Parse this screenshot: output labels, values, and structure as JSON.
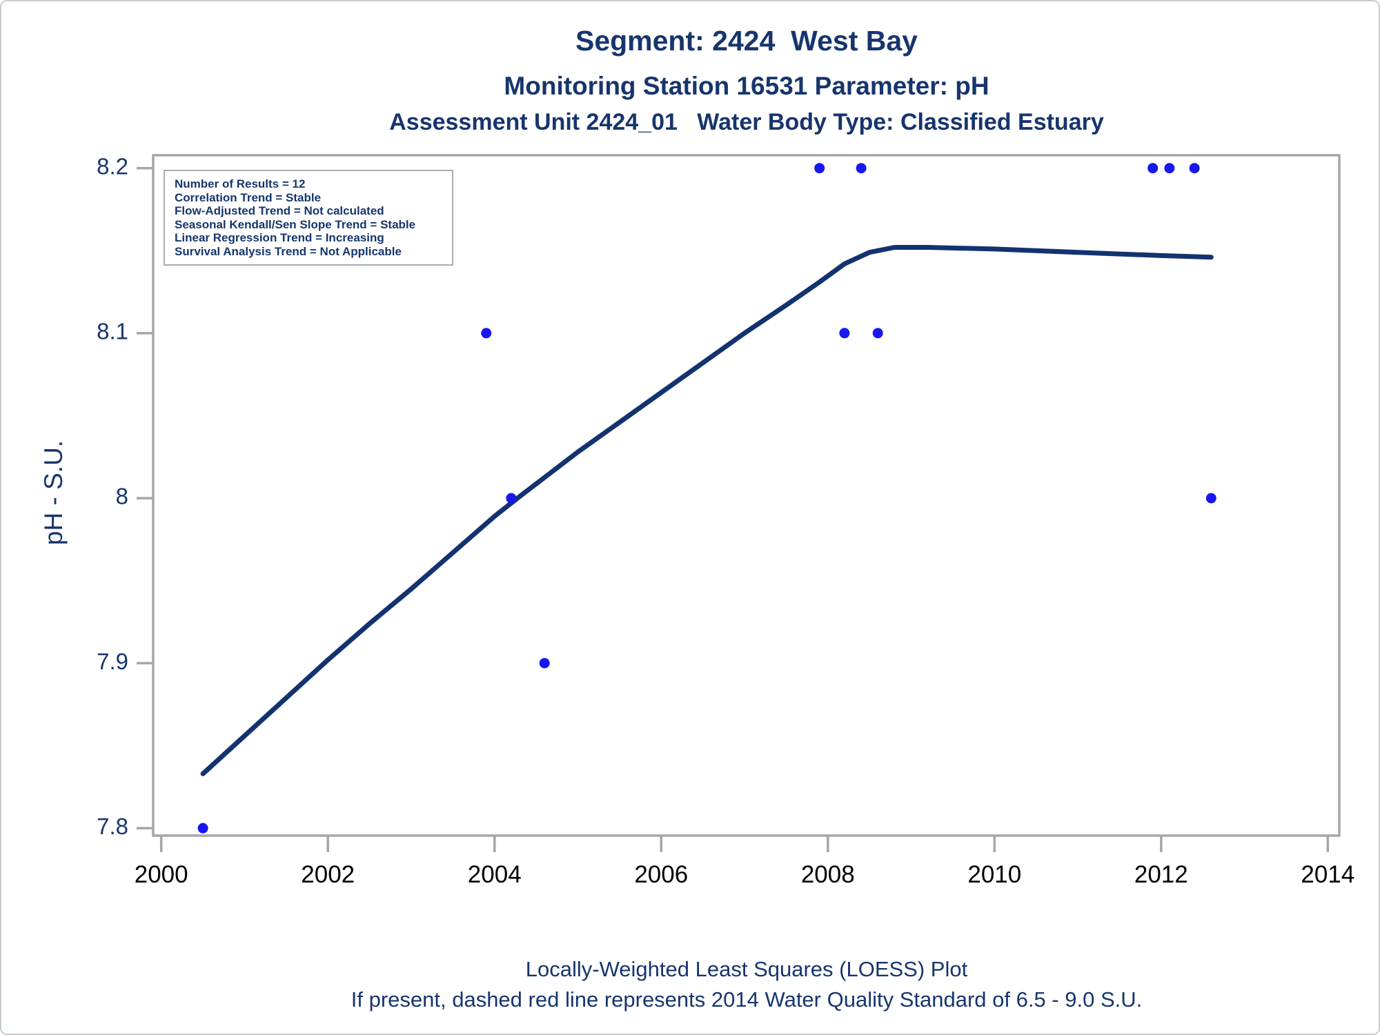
{
  "titles": {
    "line1": "Segment: 2424  West Bay",
    "line2": "Monitoring Station 16531 Parameter: pH",
    "line3": "Assessment Unit 2424_01   Water Body Type: Classified Estuary"
  },
  "stats_box": {
    "lines": [
      "Number of Results = 12",
      "Correlation Trend = Stable",
      "Flow-Adjusted Trend = Not calculated",
      "Seasonal Kendall/Sen Slope Trend = Stable",
      "Linear Regression Trend = Increasing",
      "Survival Analysis Trend = Not Applicable"
    ]
  },
  "footnotes": {
    "line1": "Locally-Weighted Least Squares (LOESS) Plot",
    "line2": "If present, dashed red line represents 2014 Water Quality Standard of 6.5 - 9.0 S.U."
  },
  "colors": {
    "text_navy": "#17356D",
    "loess_line": "#133270",
    "point_blue": "#1717F0",
    "axis_gray": "#A4A7AA",
    "x_tick_label": "#000000"
  },
  "chart_data": {
    "type": "scatter",
    "title": "Segment: 2424  West Bay",
    "subtitle1": "Monitoring Station 16531 Parameter: pH",
    "subtitle2": "Assessment Unit 2424_01   Water Body Type: Classified Estuary",
    "xlabel": "",
    "ylabel": "pH - S.U.",
    "xlim": [
      1999.9,
      2014.15
    ],
    "ylim": [
      7.795,
      8.208
    ],
    "x_ticks": [
      2000,
      2002,
      2004,
      2006,
      2008,
      2010,
      2012,
      2014
    ],
    "y_ticks": [
      {
        "value": 7.8,
        "label": "7.8"
      },
      {
        "value": 7.9,
        "label": "7.9"
      },
      {
        "value": 8.0,
        "label": "8"
      },
      {
        "value": 8.1,
        "label": "8.1"
      },
      {
        "value": 8.2,
        "label": "8.2"
      }
    ],
    "grid": false,
    "legend_position": "none",
    "series": [
      {
        "name": "pH observations",
        "type": "scatter",
        "points": [
          [
            2000.5,
            7.8
          ],
          [
            2003.9,
            8.1
          ],
          [
            2004.2,
            8.0
          ],
          [
            2004.6,
            7.9
          ],
          [
            2007.9,
            8.2
          ],
          [
            2008.2,
            8.1
          ],
          [
            2008.4,
            8.2
          ],
          [
            2008.6,
            8.1
          ],
          [
            2011.9,
            8.2
          ],
          [
            2012.1,
            8.2
          ],
          [
            2012.4,
            8.2
          ],
          [
            2012.6,
            8.0
          ]
        ]
      },
      {
        "name": "LOESS fit",
        "type": "line",
        "points": [
          [
            2000.5,
            7.833
          ],
          [
            2001.0,
            7.856
          ],
          [
            2001.5,
            7.879
          ],
          [
            2002.0,
            7.902
          ],
          [
            2002.5,
            7.924
          ],
          [
            2003.0,
            7.945
          ],
          [
            2003.5,
            7.967
          ],
          [
            2004.0,
            7.989
          ],
          [
            2004.3,
            8.001
          ],
          [
            2005.0,
            8.028
          ],
          [
            2005.5,
            8.046
          ],
          [
            2006.0,
            8.064
          ],
          [
            2006.5,
            8.082
          ],
          [
            2007.0,
            8.1
          ],
          [
            2007.5,
            8.117
          ],
          [
            2007.9,
            8.131
          ],
          [
            2008.2,
            8.142
          ],
          [
            2008.5,
            8.149
          ],
          [
            2008.8,
            8.152
          ],
          [
            2009.2,
            8.152
          ],
          [
            2010.0,
            8.151
          ],
          [
            2011.0,
            8.149
          ],
          [
            2012.0,
            8.147
          ],
          [
            2012.6,
            8.146
          ]
        ]
      }
    ]
  }
}
